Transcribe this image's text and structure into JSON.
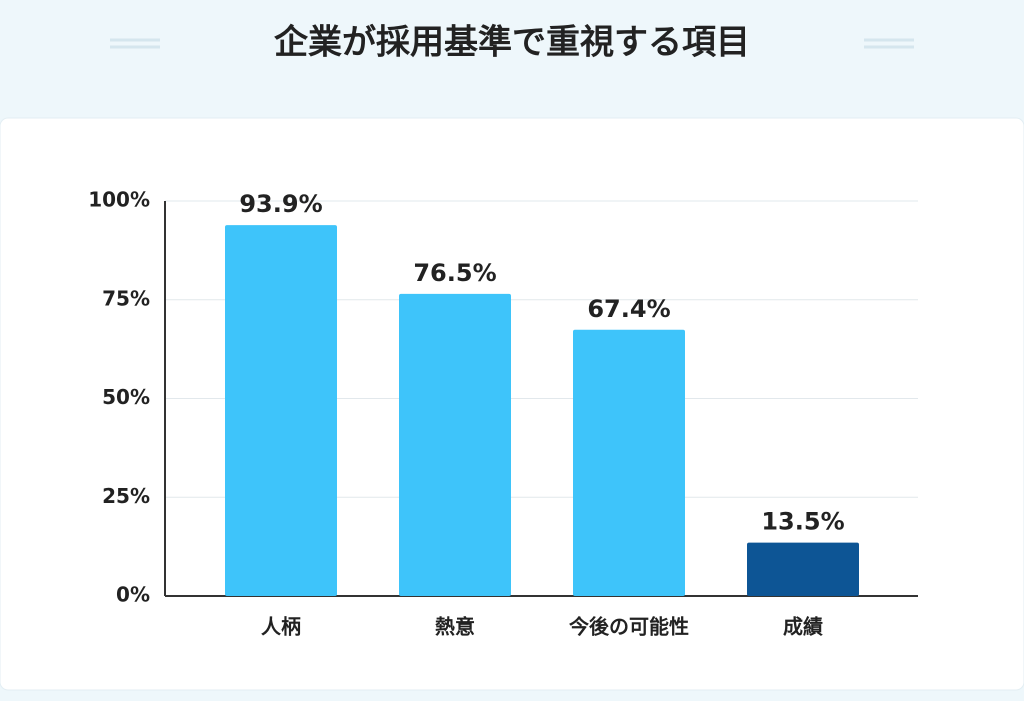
{
  "chart_data": {
    "type": "bar",
    "title": "企業が採用基準で重視する項目",
    "categories": [
      "人柄",
      "熱意",
      "今後の可能性",
      "成績"
    ],
    "values": [
      93.9,
      76.5,
      67.4,
      13.5
    ],
    "value_labels": [
      "93.9%",
      "76.5%",
      "67.4%",
      "13.5%"
    ],
    "colors": [
      "#3ec4fa",
      "#3ec4fa",
      "#3ec4fa",
      "#0d5595"
    ],
    "ylim": [
      0,
      100
    ],
    "yticks": [
      {
        "value": 0,
        "label": "0%"
      },
      {
        "value": 25,
        "label": "25%"
      },
      {
        "value": 50,
        "label": "50%"
      },
      {
        "value": 75,
        "label": "75%"
      },
      {
        "value": 100,
        "label": "100%"
      }
    ],
    "grid": true
  }
}
